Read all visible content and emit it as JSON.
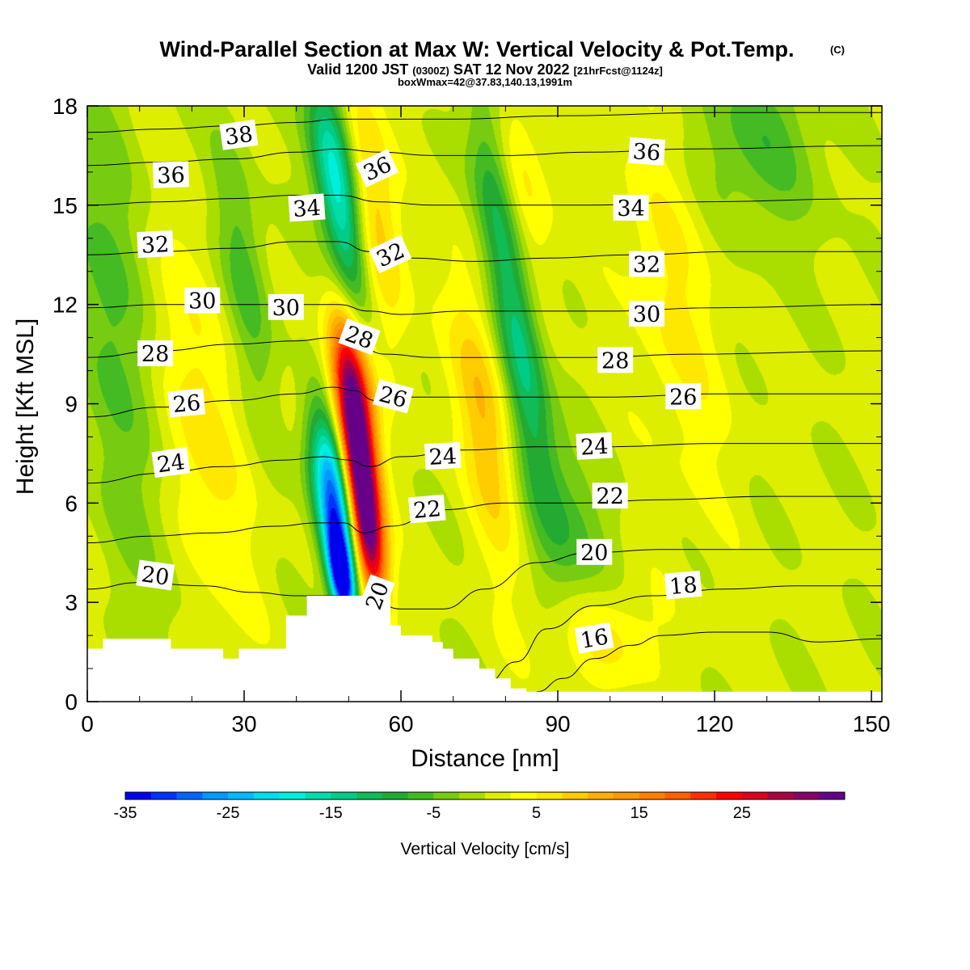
{
  "title": {
    "main": "Wind-Parallel Section at Max W: Vertical Velocity & Pot.Temp.",
    "copyright": "(C)",
    "valid": "Valid 1200 JST",
    "valid_utc": "(0300Z)",
    "valid_date": "SAT 12 Nov 2022",
    "forecast": "[21hrFcst@1124z]",
    "box": "boxWmax=42@37.83,140.13,1991m"
  },
  "chart_data": {
    "type": "heatmap",
    "xlabel": "Distance [nm]",
    "ylabel": "Height [Kft MSL]",
    "xlim": [
      0,
      152
    ],
    "ylim": [
      0,
      18
    ],
    "xticks": [
      "0",
      "30",
      "60",
      "90",
      "120",
      "150"
    ],
    "yticks": [
      "0",
      "3",
      "6",
      "9",
      "12",
      "15",
      "18"
    ],
    "colorbar": {
      "label": "Vertical Velocity [cm/s]",
      "range": [
        -35,
        35
      ],
      "step": 2.5,
      "tick_labels": [
        "-35",
        "-25",
        "-15",
        "-5",
        "5",
        "15",
        "25"
      ],
      "colors": [
        "#0000ee",
        "#0033ff",
        "#0066ff",
        "#0099ff",
        "#00bbff",
        "#00ddee",
        "#00eedd",
        "#00ddaa",
        "#00cc88",
        "#11bb55",
        "#22aa33",
        "#44bb22",
        "#77cc11",
        "#aadd00",
        "#ddee00",
        "#ffff00",
        "#ffe800",
        "#ffcc00",
        "#ffb000",
        "#ff9900",
        "#ff8000",
        "#ff6000",
        "#ff3000",
        "#ff0000",
        "#dd0022",
        "#aa0044",
        "#880066",
        "#660088"
      ]
    },
    "terrain_kft": [
      [
        0,
        1.6
      ],
      [
        3,
        1.6
      ],
      [
        3,
        1.9
      ],
      [
        16,
        1.9
      ],
      [
        16,
        1.6
      ],
      [
        26,
        1.6
      ],
      [
        26,
        1.3
      ],
      [
        29,
        1.3
      ],
      [
        29,
        1.6
      ],
      [
        38,
        1.6
      ],
      [
        38,
        2.6
      ],
      [
        42,
        2.6
      ],
      [
        42,
        3.2
      ],
      [
        58,
        3.2
      ],
      [
        58,
        2.3
      ],
      [
        60,
        2.3
      ],
      [
        60,
        2.0
      ],
      [
        66,
        2.0
      ],
      [
        66,
        1.8
      ],
      [
        68,
        1.8
      ],
      [
        68,
        1.6
      ],
      [
        70,
        1.6
      ],
      [
        70,
        1.3
      ],
      [
        75,
        1.3
      ],
      [
        75,
        1.0
      ],
      [
        78,
        1.0
      ],
      [
        78,
        0.7
      ],
      [
        81,
        0.7
      ],
      [
        81,
        0.4
      ],
      [
        84,
        0.4
      ],
      [
        84,
        0.3
      ],
      [
        152,
        0.3
      ]
    ],
    "vertical_velocity_features": [
      {
        "kind": "downdraft",
        "x": 48.5,
        "y": 3.8,
        "sx": 1.6,
        "sy": 1.0,
        "w": -35
      },
      {
        "kind": "downdraft",
        "x": 47.5,
        "y": 5.5,
        "sx": 2.6,
        "sy": 1.6,
        "w": -22
      },
      {
        "kind": "downdraft",
        "x": 46.5,
        "y": 7.2,
        "sx": 2.8,
        "sy": 1.4,
        "w": -14
      },
      {
        "kind": "downdraft",
        "x": 49,
        "y": 14.5,
        "sx": 2.5,
        "sy": 2.5,
        "w": -13
      },
      {
        "kind": "downdraft",
        "x": 46,
        "y": 16.5,
        "sx": 3,
        "sy": 2,
        "w": -10
      },
      {
        "kind": "downdraft",
        "x": 78,
        "y": 15.5,
        "sx": 3,
        "sy": 2.5,
        "w": -11
      },
      {
        "kind": "downdraft",
        "x": 82,
        "y": 11.5,
        "sx": 3,
        "sy": 2.5,
        "w": -9
      },
      {
        "kind": "downdraft",
        "x": 85,
        "y": 8.5,
        "sx": 3,
        "sy": 2.5,
        "w": -7
      },
      {
        "kind": "downdraft",
        "x": 92,
        "y": 5,
        "sx": 5,
        "sy": 2,
        "w": -7
      },
      {
        "kind": "downdraft",
        "x": 6,
        "y": 11,
        "sx": 5,
        "sy": 6,
        "w": -8
      },
      {
        "kind": "downdraft",
        "x": 30,
        "y": 13,
        "sx": 3,
        "sy": 3,
        "w": -7
      },
      {
        "kind": "downdraft",
        "x": 128,
        "y": 17,
        "sx": 8,
        "sy": 2,
        "w": -7
      },
      {
        "kind": "updraft",
        "x": 53.5,
        "y": 5.0,
        "sx": 2.2,
        "sy": 1.5,
        "w": 30
      },
      {
        "kind": "updraft",
        "x": 51.5,
        "y": 7.8,
        "sx": 2.4,
        "sy": 1.7,
        "w": 33
      },
      {
        "kind": "updraft",
        "x": 50.5,
        "y": 10.0,
        "sx": 2.6,
        "sy": 1.6,
        "w": 18
      },
      {
        "kind": "updraft",
        "x": 55,
        "y": 15,
        "sx": 3,
        "sy": 3,
        "w": 9
      },
      {
        "kind": "updraft",
        "x": 76,
        "y": 8.5,
        "sx": 3.5,
        "sy": 3,
        "w": 10
      },
      {
        "kind": "updraft",
        "x": 82,
        "y": 15.5,
        "sx": 4,
        "sy": 2.5,
        "w": 7
      },
      {
        "kind": "updraft",
        "x": 20,
        "y": 8,
        "sx": 7,
        "sy": 4,
        "w": 6
      },
      {
        "kind": "updraft",
        "x": 112,
        "y": 12,
        "sx": 6,
        "sy": 4,
        "w": 5
      },
      {
        "kind": "updraft",
        "x": 98,
        "y": 2.0,
        "sx": 8,
        "sy": 1.2,
        "w": 6
      }
    ],
    "theta_contours": [
      {
        "value": 16,
        "points": [
          [
            86,
            0.3
          ],
          [
            91,
            0.7
          ],
          [
            97,
            1.3
          ],
          [
            104,
            1.7
          ],
          [
            110,
            2.0
          ],
          [
            120,
            2.1
          ],
          [
            130,
            2.1
          ],
          [
            140,
            1.8
          ],
          [
            152,
            1.9
          ]
        ]
      },
      {
        "value": 18,
        "points": [
          [
            76,
            0.5
          ],
          [
            82,
            1.2
          ],
          [
            88,
            2.2
          ],
          [
            97,
            2.9
          ],
          [
            108,
            3.2
          ],
          [
            122,
            3.4
          ],
          [
            136,
            3.5
          ],
          [
            152,
            3.5
          ]
        ]
      },
      {
        "value": 20,
        "points": [
          [
            0,
            3.4
          ],
          [
            10,
            3.6
          ],
          [
            22,
            3.5
          ],
          [
            32,
            3.3
          ],
          [
            40,
            3.2
          ],
          [
            49,
            3.2
          ],
          [
            54,
            3.1
          ],
          [
            60,
            2.8
          ],
          [
            68,
            2.8
          ],
          [
            76,
            3.4
          ],
          [
            86,
            4.2
          ],
          [
            96,
            4.5
          ],
          [
            110,
            4.6
          ],
          [
            130,
            4.6
          ],
          [
            152,
            4.6
          ]
        ]
      },
      {
        "value": 22,
        "points": [
          [
            0,
            4.8
          ],
          [
            12,
            5.0
          ],
          [
            24,
            5.1
          ],
          [
            36,
            5.3
          ],
          [
            44,
            5.4
          ],
          [
            49,
            5.4
          ],
          [
            53,
            5.1
          ],
          [
            58,
            5.3
          ],
          [
            68,
            5.8
          ],
          [
            80,
            6.0
          ],
          [
            94,
            6.0
          ],
          [
            110,
            6.1
          ],
          [
            130,
            6.2
          ],
          [
            152,
            6.2
          ]
        ]
      },
      {
        "value": 24,
        "points": [
          [
            0,
            6.6
          ],
          [
            14,
            6.9
          ],
          [
            26,
            7.1
          ],
          [
            38,
            7.3
          ],
          [
            45,
            7.4
          ],
          [
            50,
            7.3
          ],
          [
            54,
            7.1
          ],
          [
            60,
            7.4
          ],
          [
            72,
            7.6
          ],
          [
            86,
            7.7
          ],
          [
            100,
            7.7
          ],
          [
            120,
            7.8
          ],
          [
            152,
            7.8
          ]
        ]
      },
      {
        "value": 26,
        "points": [
          [
            0,
            8.6
          ],
          [
            14,
            8.9
          ],
          [
            28,
            9.1
          ],
          [
            40,
            9.3
          ],
          [
            47,
            9.5
          ],
          [
            51,
            9.4
          ],
          [
            55,
            9.1
          ],
          [
            60,
            9.2
          ],
          [
            72,
            9.2
          ],
          [
            86,
            9.2
          ],
          [
            100,
            9.2
          ],
          [
            120,
            9.3
          ],
          [
            152,
            9.3
          ]
        ]
      },
      {
        "value": 28,
        "points": [
          [
            0,
            10.4
          ],
          [
            14,
            10.6
          ],
          [
            28,
            10.8
          ],
          [
            40,
            10.9
          ],
          [
            47,
            11.0
          ],
          [
            52,
            10.7
          ],
          [
            57,
            10.5
          ],
          [
            66,
            10.4
          ],
          [
            80,
            10.4
          ],
          [
            96,
            10.4
          ],
          [
            116,
            10.5
          ],
          [
            152,
            10.6
          ]
        ]
      },
      {
        "value": 30,
        "points": [
          [
            0,
            11.9
          ],
          [
            14,
            12.0
          ],
          [
            28,
            12.0
          ],
          [
            40,
            12.0
          ],
          [
            48,
            12.0
          ],
          [
            54,
            11.8
          ],
          [
            60,
            11.7
          ],
          [
            72,
            11.8
          ],
          [
            86,
            11.8
          ],
          [
            100,
            11.8
          ],
          [
            120,
            11.9
          ],
          [
            152,
            12.0
          ]
        ]
      },
      {
        "value": 32,
        "points": [
          [
            0,
            13.5
          ],
          [
            14,
            13.6
          ],
          [
            28,
            13.7
          ],
          [
            40,
            13.9
          ],
          [
            48,
            13.9
          ],
          [
            54,
            13.6
          ],
          [
            62,
            13.4
          ],
          [
            74,
            13.3
          ],
          [
            88,
            13.4
          ],
          [
            104,
            13.5
          ],
          [
            124,
            13.6
          ],
          [
            152,
            13.6
          ]
        ]
      },
      {
        "value": 34,
        "points": [
          [
            0,
            15.0
          ],
          [
            14,
            15.1
          ],
          [
            28,
            15.2
          ],
          [
            40,
            15.3
          ],
          [
            48,
            15.3
          ],
          [
            56,
            15.1
          ],
          [
            66,
            15.0
          ],
          [
            80,
            15.0
          ],
          [
            96,
            15.0
          ],
          [
            116,
            15.1
          ],
          [
            152,
            15.2
          ]
        ]
      },
      {
        "value": 36,
        "points": [
          [
            0,
            16.2
          ],
          [
            14,
            16.3
          ],
          [
            28,
            16.4
          ],
          [
            40,
            16.6
          ],
          [
            48,
            16.7
          ],
          [
            56,
            16.6
          ],
          [
            66,
            16.5
          ],
          [
            80,
            16.5
          ],
          [
            96,
            16.6
          ],
          [
            116,
            16.7
          ],
          [
            152,
            16.8
          ]
        ]
      },
      {
        "value": 38,
        "points": [
          [
            0,
            17.2
          ],
          [
            14,
            17.3
          ],
          [
            28,
            17.4
          ],
          [
            40,
            17.5
          ],
          [
            48,
            17.6
          ],
          [
            56,
            17.6
          ],
          [
            70,
            17.6
          ],
          [
            90,
            17.7
          ],
          [
            120,
            17.8
          ],
          [
            152,
            17.8
          ]
        ]
      }
    ],
    "contour_labels": [
      {
        "text": "38",
        "x": 29,
        "y": 17.1,
        "rot": -8
      },
      {
        "text": "36",
        "x": 16,
        "y": 15.9,
        "rot": -2
      },
      {
        "text": "36",
        "x": 55.5,
        "y": 16.1,
        "rot": -25
      },
      {
        "text": "36",
        "x": 107,
        "y": 16.6,
        "rot": 4
      },
      {
        "text": "34",
        "x": 42,
        "y": 14.9,
        "rot": -4
      },
      {
        "text": "34",
        "x": 104,
        "y": 14.9,
        "rot": 0
      },
      {
        "text": "32",
        "x": 13,
        "y": 13.8,
        "rot": -3
      },
      {
        "text": "32",
        "x": 58,
        "y": 13.5,
        "rot": -25
      },
      {
        "text": "32",
        "x": 107,
        "y": 13.2,
        "rot": 0
      },
      {
        "text": "30",
        "x": 22,
        "y": 12.1,
        "rot": 0
      },
      {
        "text": "30",
        "x": 38,
        "y": 11.9,
        "rot": 0
      },
      {
        "text": "30",
        "x": 107,
        "y": 11.7,
        "rot": 0
      },
      {
        "text": "28",
        "x": 13,
        "y": 10.5,
        "rot": 0
      },
      {
        "text": "28",
        "x": 52,
        "y": 11.0,
        "rot": 20
      },
      {
        "text": "28",
        "x": 101,
        "y": 10.3,
        "rot": 0
      },
      {
        "text": "26",
        "x": 19,
        "y": 9.0,
        "rot": -5
      },
      {
        "text": "26",
        "x": 58.5,
        "y": 9.2,
        "rot": 15
      },
      {
        "text": "26",
        "x": 114,
        "y": 9.2,
        "rot": 0
      },
      {
        "text": "24",
        "x": 16,
        "y": 7.2,
        "rot": -8
      },
      {
        "text": "24",
        "x": 68,
        "y": 7.4,
        "rot": -3
      },
      {
        "text": "24",
        "x": 97,
        "y": 7.7,
        "rot": -3
      },
      {
        "text": "22",
        "x": 65,
        "y": 5.8,
        "rot": -5
      },
      {
        "text": "22",
        "x": 100,
        "y": 6.2,
        "rot": 0
      },
      {
        "text": "20",
        "x": 13,
        "y": 3.8,
        "rot": 8
      },
      {
        "text": "20",
        "x": 55.5,
        "y": 3.2,
        "rot": -70
      },
      {
        "text": "20",
        "x": 97,
        "y": 4.5,
        "rot": 0
      },
      {
        "text": "18",
        "x": 114,
        "y": 3.5,
        "rot": -5
      },
      {
        "text": "16",
        "x": 97,
        "y": 1.9,
        "rot": -10
      }
    ]
  }
}
